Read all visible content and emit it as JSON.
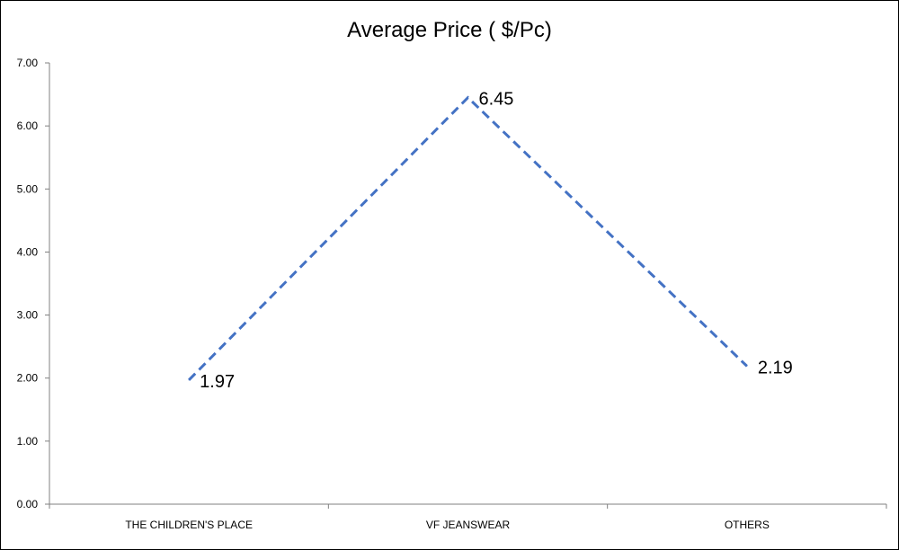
{
  "chart_data": {
    "type": "line",
    "title": "Average Price ( $/Pc)",
    "xlabel": "",
    "ylabel": "",
    "categories": [
      "THE CHILDREN'S PLACE",
      "VF JEANSWEAR",
      "OTHERS"
    ],
    "series": [
      {
        "values": [
          1.97,
          6.45,
          2.19
        ],
        "value_labels": [
          "1.97",
          "6.45",
          "2.19"
        ],
        "color": "#4472C4",
        "line_style": "dashed"
      }
    ],
    "ylim": [
      0,
      7
    ],
    "yticks": [
      "0.00",
      "1.00",
      "2.00",
      "3.00",
      "4.00",
      "5.00",
      "6.00",
      "7.00"
    ],
    "grid": false,
    "legend": "none"
  }
}
